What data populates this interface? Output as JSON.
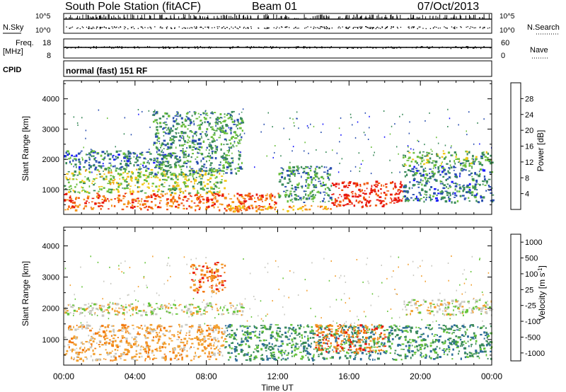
{
  "header": {
    "title": "South Pole Station (fitACF)",
    "beam": "Beam 01",
    "date": "07/Oct/2013"
  },
  "params": {
    "nsky_label": "N.Sky",
    "nsearch_label": "N.Search",
    "freq_label_top": "Freq.",
    "freq_label_unit": "[MHz]",
    "nave_label": "Nave",
    "cpid_label": "CPID",
    "mode_text": "normal (fast) 151 RF",
    "noise_ticks": [
      "10^5",
      "10^0"
    ],
    "noise_ticks_right": [
      "10^5",
      "10^0"
    ],
    "freq_ticks": [
      "18",
      "8"
    ],
    "nave_ticks": [
      "60",
      "0"
    ]
  },
  "chart_data": [
    {
      "type": "heatmap",
      "name": "power",
      "xlabel": "Time UT",
      "ylabel": "Slant Range [km]",
      "xlim": [
        0,
        24
      ],
      "ylim": [
        180,
        4600
      ],
      "x_ticks": [
        "00:00",
        "04:00",
        "08:00",
        "12:00",
        "16:00",
        "20:00",
        "00:00"
      ],
      "y_ticks": [
        1000,
        2000,
        3000,
        4000
      ],
      "colorbar": {
        "label": "Power [dB]",
        "ticks": [
          4,
          8,
          12,
          16,
          20,
          24,
          28
        ],
        "range": [
          0,
          30
        ],
        "colors": [
          "#1a1aff",
          "#2a4fb0",
          "#3a8a5a",
          "#6abf3c",
          "#f2c818",
          "#f59518",
          "#f25a10",
          "#e8180c"
        ]
      },
      "regions": [
        {
          "t": [
            0,
            12
          ],
          "r": [
            350,
            900
          ],
          "level": 24
        },
        {
          "t": [
            0,
            9
          ],
          "r": [
            900,
            1700
          ],
          "level": 14
        },
        {
          "t": [
            0,
            6
          ],
          "r": [
            1700,
            2300
          ],
          "level": 8
        },
        {
          "t": [
            5,
            10
          ],
          "r": [
            1500,
            3600
          ],
          "level": 10
        },
        {
          "t": [
            9,
            15
          ],
          "r": [
            300,
            500
          ],
          "level": 20
        },
        {
          "t": [
            15,
            19
          ],
          "r": [
            450,
            1300
          ],
          "level": 28
        },
        {
          "t": [
            12,
            15
          ],
          "r": [
            600,
            1800
          ],
          "level": 10
        },
        {
          "t": [
            19,
            24
          ],
          "r": [
            600,
            1800
          ],
          "level": 8
        },
        {
          "t": [
            19,
            24
          ],
          "r": [
            1800,
            2300
          ],
          "level": 12
        }
      ]
    },
    {
      "type": "heatmap",
      "name": "velocity",
      "xlabel": "Time UT",
      "ylabel": "Slant Range [km]",
      "xlim": [
        0,
        24
      ],
      "ylim": [
        180,
        4600
      ],
      "x_ticks": [
        "00:00",
        "04:00",
        "08:00",
        "12:00",
        "16:00",
        "20:00",
        "00:00"
      ],
      "y_ticks": [
        1000,
        2000,
        3000,
        4000
      ],
      "colorbar": {
        "label": "Velocity [m s-1]",
        "ticks": [
          1000,
          500,
          100,
          25,
          -25,
          -100,
          -500,
          -1000
        ],
        "colors": [
          "#2233aa",
          "#2f6e9a",
          "#3a8a5a",
          "#66c43a",
          "#c8c8c0",
          "#f2a030",
          "#f27a10",
          "#e8180c"
        ]
      },
      "regions": [
        {
          "t": [
            0,
            9
          ],
          "r": [
            350,
            1500
          ],
          "v": -100
        },
        {
          "t": [
            0,
            10
          ],
          "r": [
            1800,
            2200
          ],
          "v": 0
        },
        {
          "t": [
            9,
            19
          ],
          "r": [
            350,
            1500
          ],
          "v": 100
        },
        {
          "t": [
            14,
            18
          ],
          "r": [
            600,
            1500
          ],
          "v": -500
        },
        {
          "t": [
            19,
            24
          ],
          "r": [
            1800,
            2300
          ],
          "v": 0
        },
        {
          "t": [
            19,
            24
          ],
          "r": [
            400,
            1500
          ],
          "v": 100
        },
        {
          "t": [
            7,
            9
          ],
          "r": [
            2500,
            3500
          ],
          "v": -500
        }
      ]
    }
  ]
}
